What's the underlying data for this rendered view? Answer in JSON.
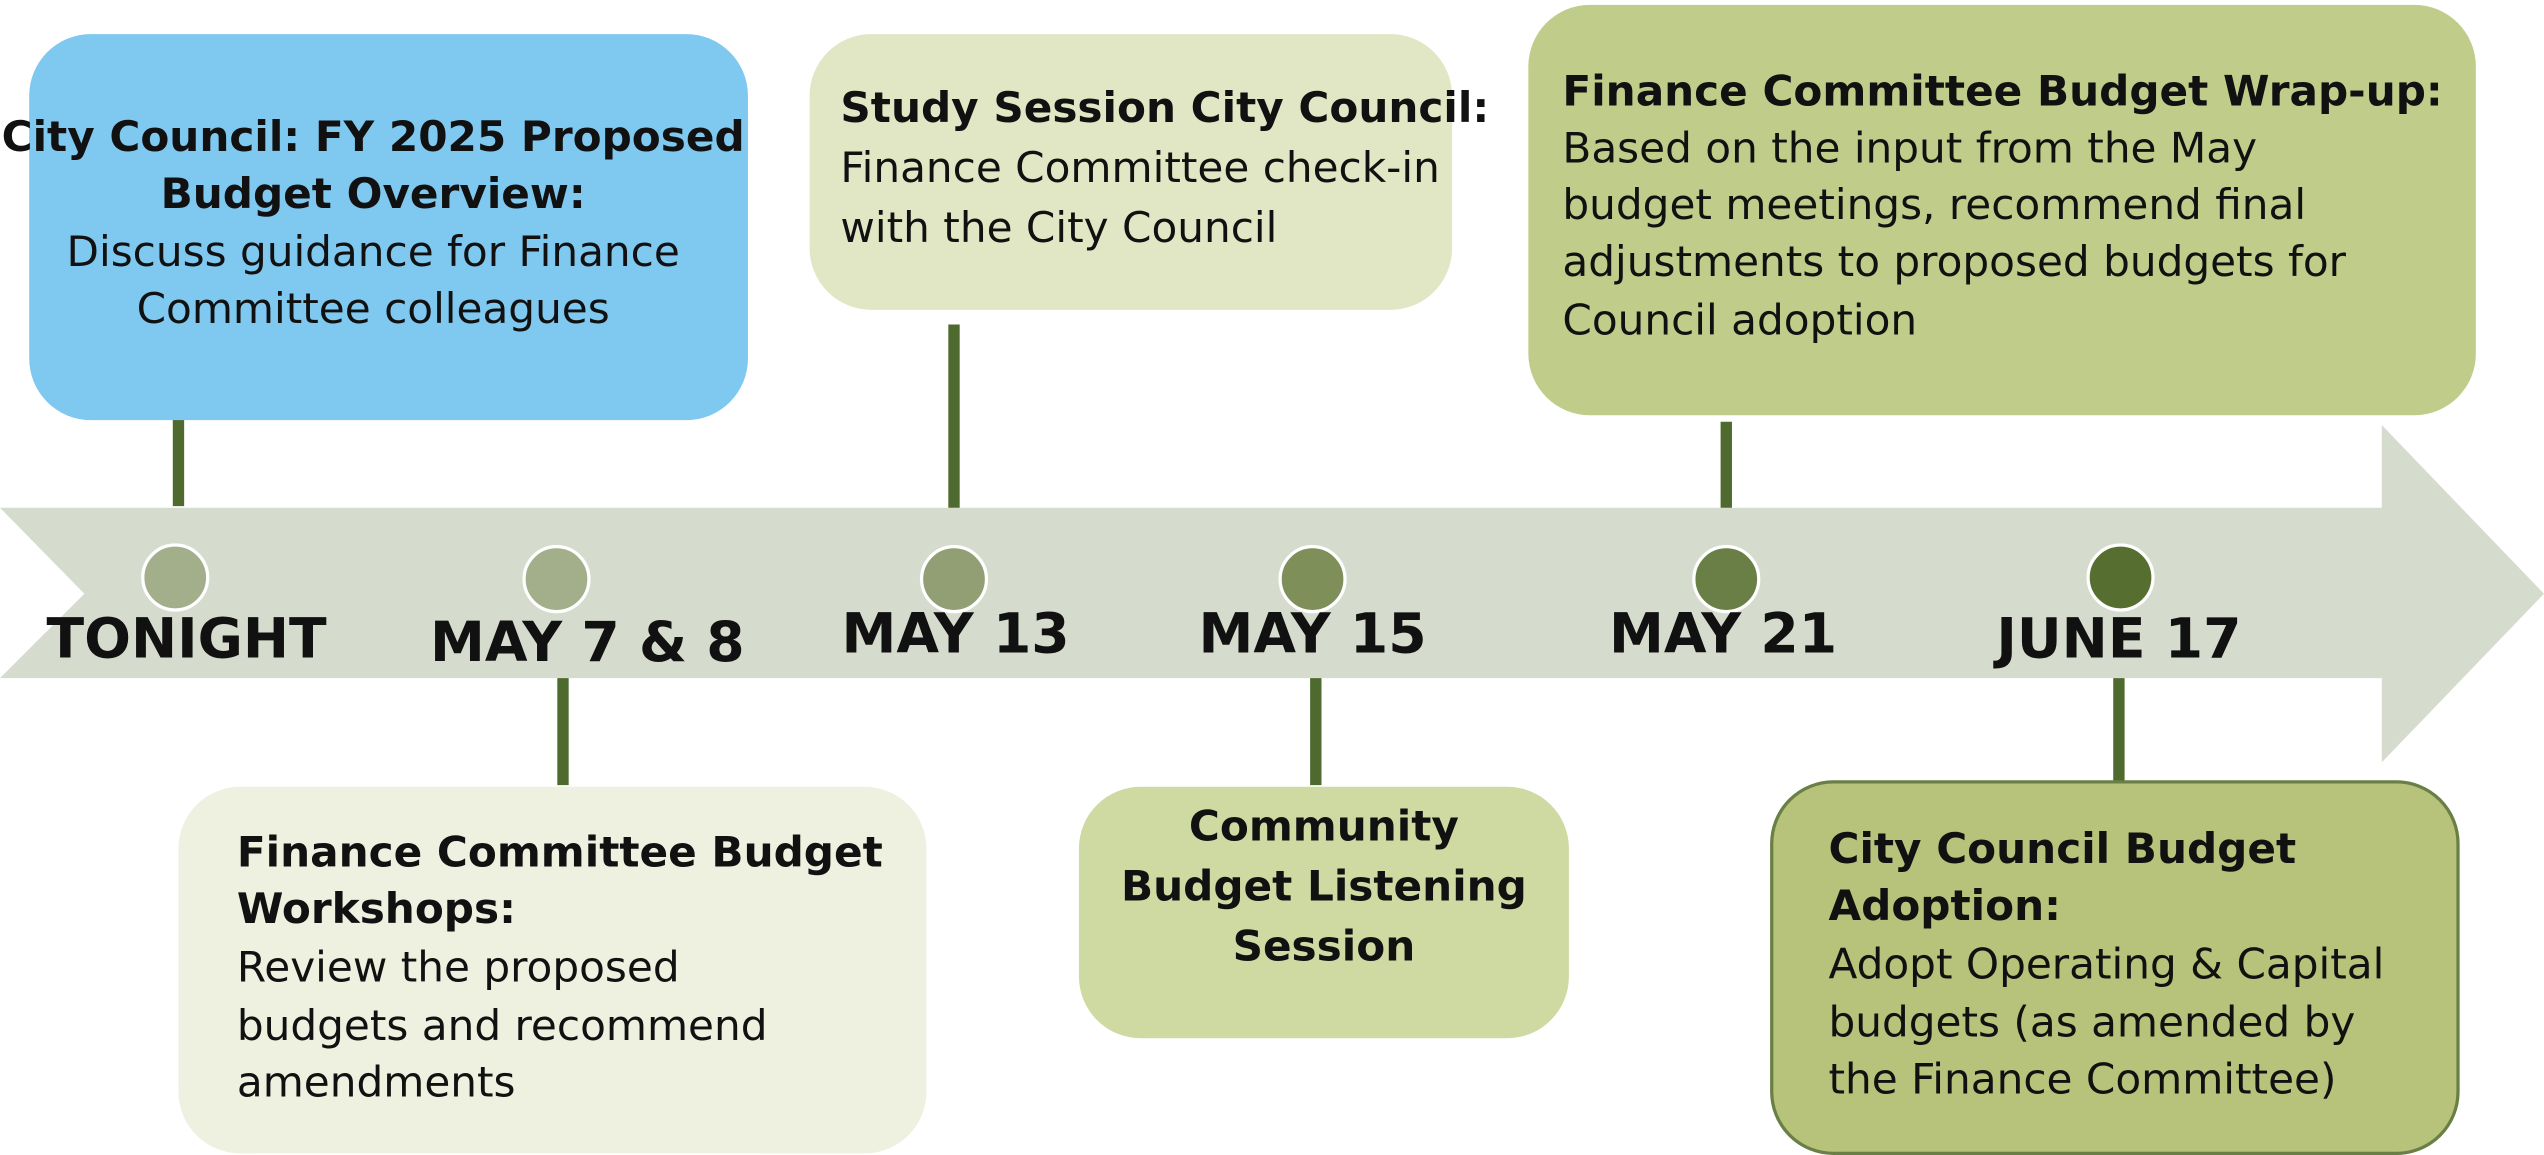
{
  "timeline": {
    "events": [
      {
        "date": "TONIGHT",
        "title_lines": [
          "City Council: FY 2025 Proposed",
          "Budget Overview:"
        ],
        "body_lines": [
          "Discuss guidance for Finance",
          "Committee colleagues"
        ]
      },
      {
        "date": "MAY 7 & 8",
        "title_lines": [
          "Finance Committee Budget",
          "Workshops:"
        ],
        "body_lines": [
          "Review the proposed",
          "budgets and recommend",
          "amendments"
        ]
      },
      {
        "date": "MAY 13",
        "title_lines": [
          "Study Session City Council:"
        ],
        "body_lines": [
          "Finance Committee check-in",
          "with the City Council"
        ]
      },
      {
        "date": "MAY 15",
        "title_lines": [
          "Community",
          "Budget Listening",
          "Session"
        ],
        "body_lines": []
      },
      {
        "date": "MAY 21",
        "title_lines": [
          "Finance Committee Budget Wrap-up:"
        ],
        "body_lines": [
          "Based on the input from the May",
          "budget meetings, recommend final",
          "adjustments to proposed budgets for",
          "Council adoption"
        ]
      },
      {
        "date": "JUNE 17",
        "title_lines": [
          "City Council Budget",
          "Adoption:"
        ],
        "body_lines": [
          "Adopt Operating & Capital",
          "budgets (as amended by",
          "the Finance Committee)"
        ]
      }
    ]
  }
}
